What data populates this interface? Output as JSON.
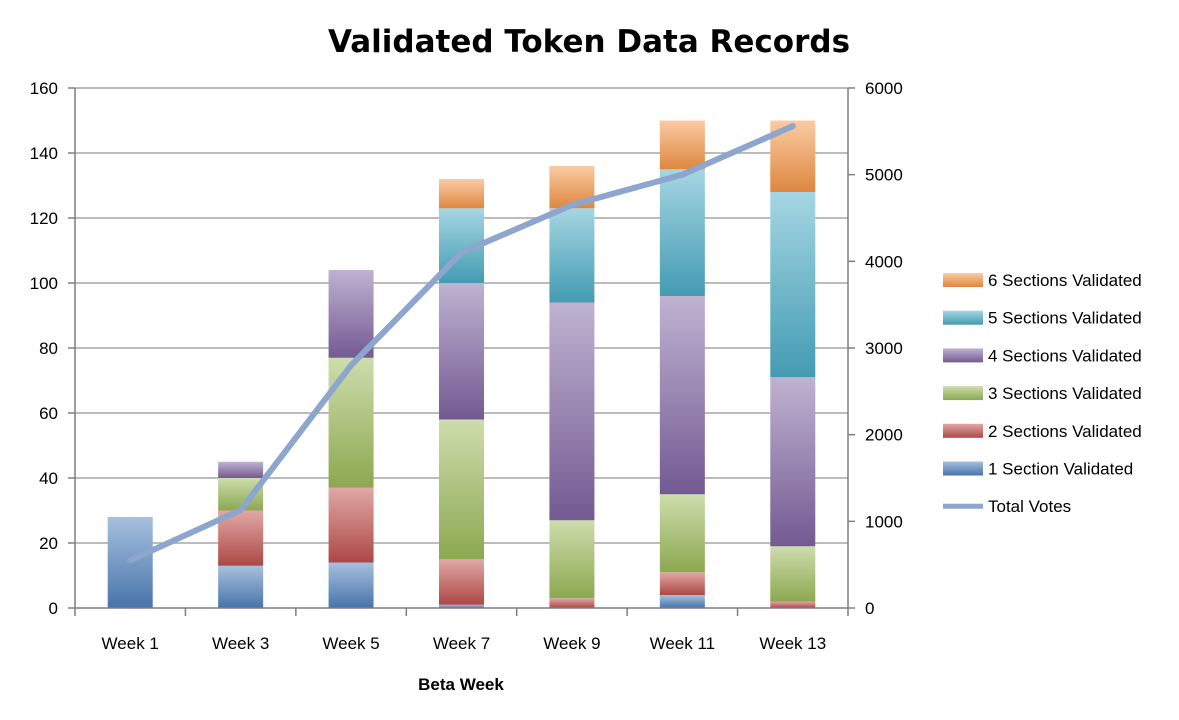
{
  "chart_data": {
    "type": "bar",
    "stacked": true,
    "title": "Validated Token Data Records",
    "xlabel": "Beta Week",
    "ylabel": "",
    "y2label": "",
    "categories": [
      "Week 1",
      "Week 3",
      "Week 5",
      "Week 7",
      "Week 9",
      "Week 11",
      "Week 13"
    ],
    "ylim": [
      0,
      160
    ],
    "yticks": [
      0,
      20,
      40,
      60,
      80,
      100,
      120,
      140,
      160
    ],
    "y2lim": [
      0,
      6000
    ],
    "y2ticks": [
      0,
      1000,
      2000,
      3000,
      4000,
      5000,
      6000
    ],
    "grid": "horizontal",
    "legend_position": "right",
    "series": [
      {
        "name": "1 Section Validated",
        "color": "#4f81bd",
        "values": [
          28,
          13,
          14,
          1,
          0,
          4,
          0
        ]
      },
      {
        "name": "2 Sections Validated",
        "color": "#c0504d",
        "values": [
          0,
          17,
          23,
          14,
          3,
          7,
          2
        ]
      },
      {
        "name": "3 Sections Validated",
        "color": "#9bbb59",
        "values": [
          0,
          10,
          40,
          43,
          24,
          24,
          17
        ]
      },
      {
        "name": "4 Sections Validated",
        "color": "#8064a2",
        "values": [
          0,
          5,
          27,
          42,
          67,
          61,
          52
        ]
      },
      {
        "name": "5 Sections Validated",
        "color": "#4bacc6",
        "values": [
          0,
          0,
          0,
          23,
          29,
          39,
          57
        ]
      },
      {
        "name": "6 Sections Validated",
        "color": "#f79646",
        "values": [
          0,
          0,
          0,
          9,
          13,
          15,
          22
        ]
      }
    ],
    "line_series": {
      "name": "Total Votes",
      "axis": "right",
      "color": "#8ea5cd",
      "values": [
        550,
        1130,
        2800,
        4100,
        4650,
        5000,
        5560
      ]
    }
  }
}
